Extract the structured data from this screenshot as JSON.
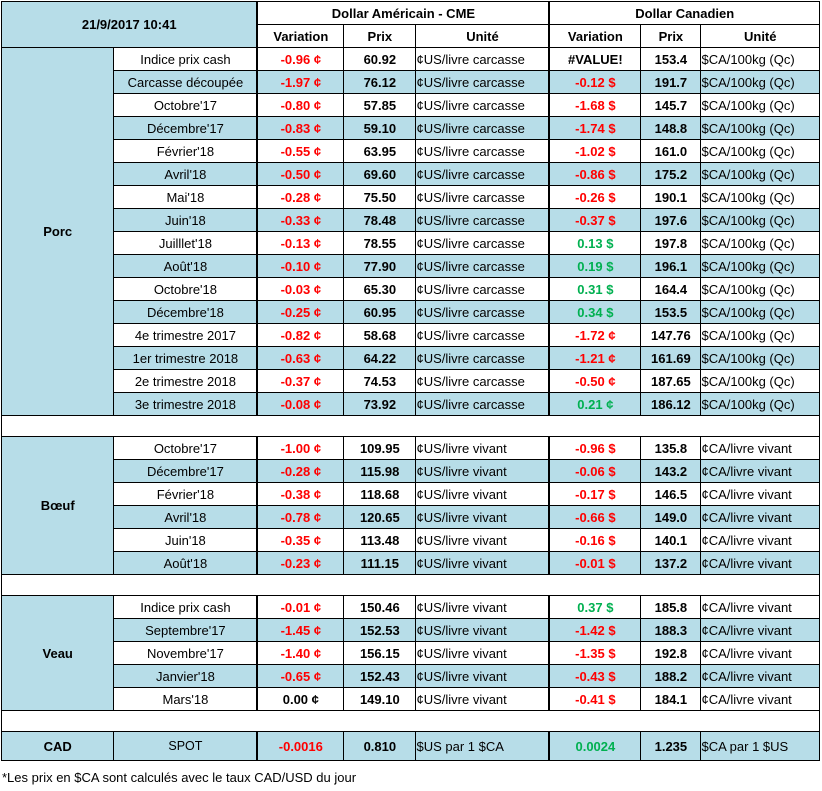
{
  "header": {
    "timestamp": "21/9/2017 10:41",
    "usd_title": "Dollar Américain - CME",
    "cad_title": "Dollar Canadien",
    "col_variation": "Variation",
    "col_prix": "Prix",
    "col_unite": "Unité"
  },
  "sections": [
    {
      "name": "Porc",
      "rows": [
        {
          "label": "Indice prix cash",
          "usd_var": "-0.96 ¢",
          "usd_prix": "60.92",
          "usd_unit": "¢US/livre carcasse",
          "cad_var": "#VALUE!",
          "cad_prix": "153.4",
          "cad_unit": "$CA/100kg (Qc)"
        },
        {
          "label": "Carcasse découpée",
          "usd_var": "-1.97 ¢",
          "usd_prix": "76.12",
          "usd_unit": "¢US/livre carcasse",
          "cad_var": "-0.12 $",
          "cad_prix": "191.7",
          "cad_unit": "$CA/100kg (Qc)"
        },
        {
          "label": "Octobre'17",
          "usd_var": "-0.80 ¢",
          "usd_prix": "57.85",
          "usd_unit": "¢US/livre carcasse",
          "cad_var": "-1.68 $",
          "cad_prix": "145.7",
          "cad_unit": "$CA/100kg (Qc)"
        },
        {
          "label": "Décembre'17",
          "usd_var": "-0.83 ¢",
          "usd_prix": "59.10",
          "usd_unit": "¢US/livre carcasse",
          "cad_var": "-1.74 $",
          "cad_prix": "148.8",
          "cad_unit": "$CA/100kg (Qc)"
        },
        {
          "label": "Février'18",
          "usd_var": "-0.55 ¢",
          "usd_prix": "63.95",
          "usd_unit": "¢US/livre carcasse",
          "cad_var": "-1.02 $",
          "cad_prix": "161.0",
          "cad_unit": "$CA/100kg (Qc)"
        },
        {
          "label": "Avril'18",
          "usd_var": "-0.50 ¢",
          "usd_prix": "69.60",
          "usd_unit": "¢US/livre carcasse",
          "cad_var": "-0.86 $",
          "cad_prix": "175.2",
          "cad_unit": "$CA/100kg (Qc)"
        },
        {
          "label": "Mai'18",
          "usd_var": "-0.28 ¢",
          "usd_prix": "75.50",
          "usd_unit": "¢US/livre carcasse",
          "cad_var": "-0.26 $",
          "cad_prix": "190.1",
          "cad_unit": "$CA/100kg (Qc)"
        },
        {
          "label": "Juin'18",
          "usd_var": "-0.33 ¢",
          "usd_prix": "78.48",
          "usd_unit": "¢US/livre carcasse",
          "cad_var": "-0.37 $",
          "cad_prix": "197.6",
          "cad_unit": "$CA/100kg (Qc)"
        },
        {
          "label": "Juilllet'18",
          "usd_var": "-0.13 ¢",
          "usd_prix": "78.55",
          "usd_unit": "¢US/livre carcasse",
          "cad_var": "0.13 $",
          "cad_prix": "197.8",
          "cad_unit": "$CA/100kg (Qc)"
        },
        {
          "label": "Août'18",
          "usd_var": "-0.10 ¢",
          "usd_prix": "77.90",
          "usd_unit": "¢US/livre carcasse",
          "cad_var": "0.19 $",
          "cad_prix": "196.1",
          "cad_unit": "$CA/100kg (Qc)"
        },
        {
          "label": "Octobre'18",
          "usd_var": "-0.03 ¢",
          "usd_prix": "65.30",
          "usd_unit": "¢US/livre carcasse",
          "cad_var": "0.31 $",
          "cad_prix": "164.4",
          "cad_unit": "$CA/100kg (Qc)"
        },
        {
          "label": "Décembre'18",
          "usd_var": "-0.25 ¢",
          "usd_prix": "60.95",
          "usd_unit": "¢US/livre carcasse",
          "cad_var": "0.34 $",
          "cad_prix": "153.5",
          "cad_unit": "$CA/100kg (Qc)"
        },
        {
          "label": "4e trimestre 2017",
          "usd_var": "-0.82 ¢",
          "usd_prix": "58.68",
          "usd_unit": "¢US/livre carcasse",
          "cad_var": "-1.72 ¢",
          "cad_prix": "147.76",
          "cad_unit": "$CA/100kg (Qc)"
        },
        {
          "label": "1er trimestre 2018",
          "usd_var": "-0.63 ¢",
          "usd_prix": "64.22",
          "usd_unit": "¢US/livre carcasse",
          "cad_var": "-1.21 ¢",
          "cad_prix": "161.69",
          "cad_unit": "$CA/100kg (Qc)"
        },
        {
          "label": "2e trimestre 2018",
          "usd_var": "-0.37 ¢",
          "usd_prix": "74.53",
          "usd_unit": "¢US/livre carcasse",
          "cad_var": "-0.50 ¢",
          "cad_prix": "187.65",
          "cad_unit": "$CA/100kg (Qc)"
        },
        {
          "label": "3e trimestre 2018",
          "usd_var": "-0.08 ¢",
          "usd_prix": "73.92",
          "usd_unit": "¢US/livre carcasse",
          "cad_var": "0.21 ¢",
          "cad_prix": "186.12",
          "cad_unit": "$CA/100kg (Qc)"
        }
      ]
    },
    {
      "name": "Bœuf",
      "rows": [
        {
          "label": "Octobre'17",
          "usd_var": "-1.00 ¢",
          "usd_prix": "109.95",
          "usd_unit": "¢US/livre vivant",
          "cad_var": "-0.96 $",
          "cad_prix": "135.8",
          "cad_unit": "¢CA/livre vivant"
        },
        {
          "label": "Décembre'17",
          "usd_var": "-0.28 ¢",
          "usd_prix": "115.98",
          "usd_unit": "¢US/livre vivant",
          "cad_var": "-0.06 $",
          "cad_prix": "143.2",
          "cad_unit": "¢CA/livre vivant"
        },
        {
          "label": "Février'18",
          "usd_var": "-0.38 ¢",
          "usd_prix": "118.68",
          "usd_unit": "¢US/livre vivant",
          "cad_var": "-0.17 $",
          "cad_prix": "146.5",
          "cad_unit": "¢CA/livre vivant"
        },
        {
          "label": "Avril'18",
          "usd_var": "-0.78 ¢",
          "usd_prix": "120.65",
          "usd_unit": "¢US/livre vivant",
          "cad_var": "-0.66 $",
          "cad_prix": "149.0",
          "cad_unit": "¢CA/livre vivant"
        },
        {
          "label": "Juin'18",
          "usd_var": "-0.35 ¢",
          "usd_prix": "113.48",
          "usd_unit": "¢US/livre vivant",
          "cad_var": "-0.16 $",
          "cad_prix": "140.1",
          "cad_unit": "¢CA/livre vivant"
        },
        {
          "label": "Août'18",
          "usd_var": "-0.23 ¢",
          "usd_prix": "111.15",
          "usd_unit": "¢US/livre vivant",
          "cad_var": "-0.01 $",
          "cad_prix": "137.2",
          "cad_unit": "¢CA/livre vivant"
        }
      ]
    },
    {
      "name": "Veau",
      "rows": [
        {
          "label": "Indice prix cash",
          "usd_var": "-0.01 ¢",
          "usd_prix": "150.46",
          "usd_unit": "¢US/livre vivant",
          "cad_var": "0.37 $",
          "cad_prix": "185.8",
          "cad_unit": "¢CA/livre vivant"
        },
        {
          "label": "Septembre'17",
          "usd_var": "-1.45 ¢",
          "usd_prix": "152.53",
          "usd_unit": "¢US/livre vivant",
          "cad_var": "-1.42 $",
          "cad_prix": "188.3",
          "cad_unit": "¢CA/livre vivant"
        },
        {
          "label": "Novembre'17",
          "usd_var": "-1.40 ¢",
          "usd_prix": "156.15",
          "usd_unit": "¢US/livre vivant",
          "cad_var": "-1.35 $",
          "cad_prix": "192.8",
          "cad_unit": "¢CA/livre vivant"
        },
        {
          "label": "Janvier'18",
          "usd_var": "-0.65 ¢",
          "usd_prix": "152.43",
          "usd_unit": "¢US/livre vivant",
          "cad_var": "-0.43 $",
          "cad_prix": "188.2",
          "cad_unit": "¢CA/livre vivant"
        },
        {
          "label": "Mars'18",
          "usd_var": "0.00 ¢",
          "usd_prix": "149.10",
          "usd_unit": "¢US/livre vivant",
          "cad_var": "-0.41 $",
          "cad_prix": "184.1",
          "cad_unit": "¢CA/livre vivant"
        }
      ]
    }
  ],
  "cad": {
    "name": "CAD",
    "label": "SPOT",
    "usd_var": "-0.0016",
    "usd_prix": "0.810",
    "usd_unit": "$US par 1 $CA",
    "cad_var": "0.0024",
    "cad_prix": "1.235",
    "cad_unit": "$CA par 1 $US"
  },
  "footnote": "*Les  prix en $CA sont calculés avec le taux CAD/USD du jour",
  "colors": {
    "band": "#b7dde8",
    "negative": "#ff0000",
    "positive": "#00b050"
  }
}
